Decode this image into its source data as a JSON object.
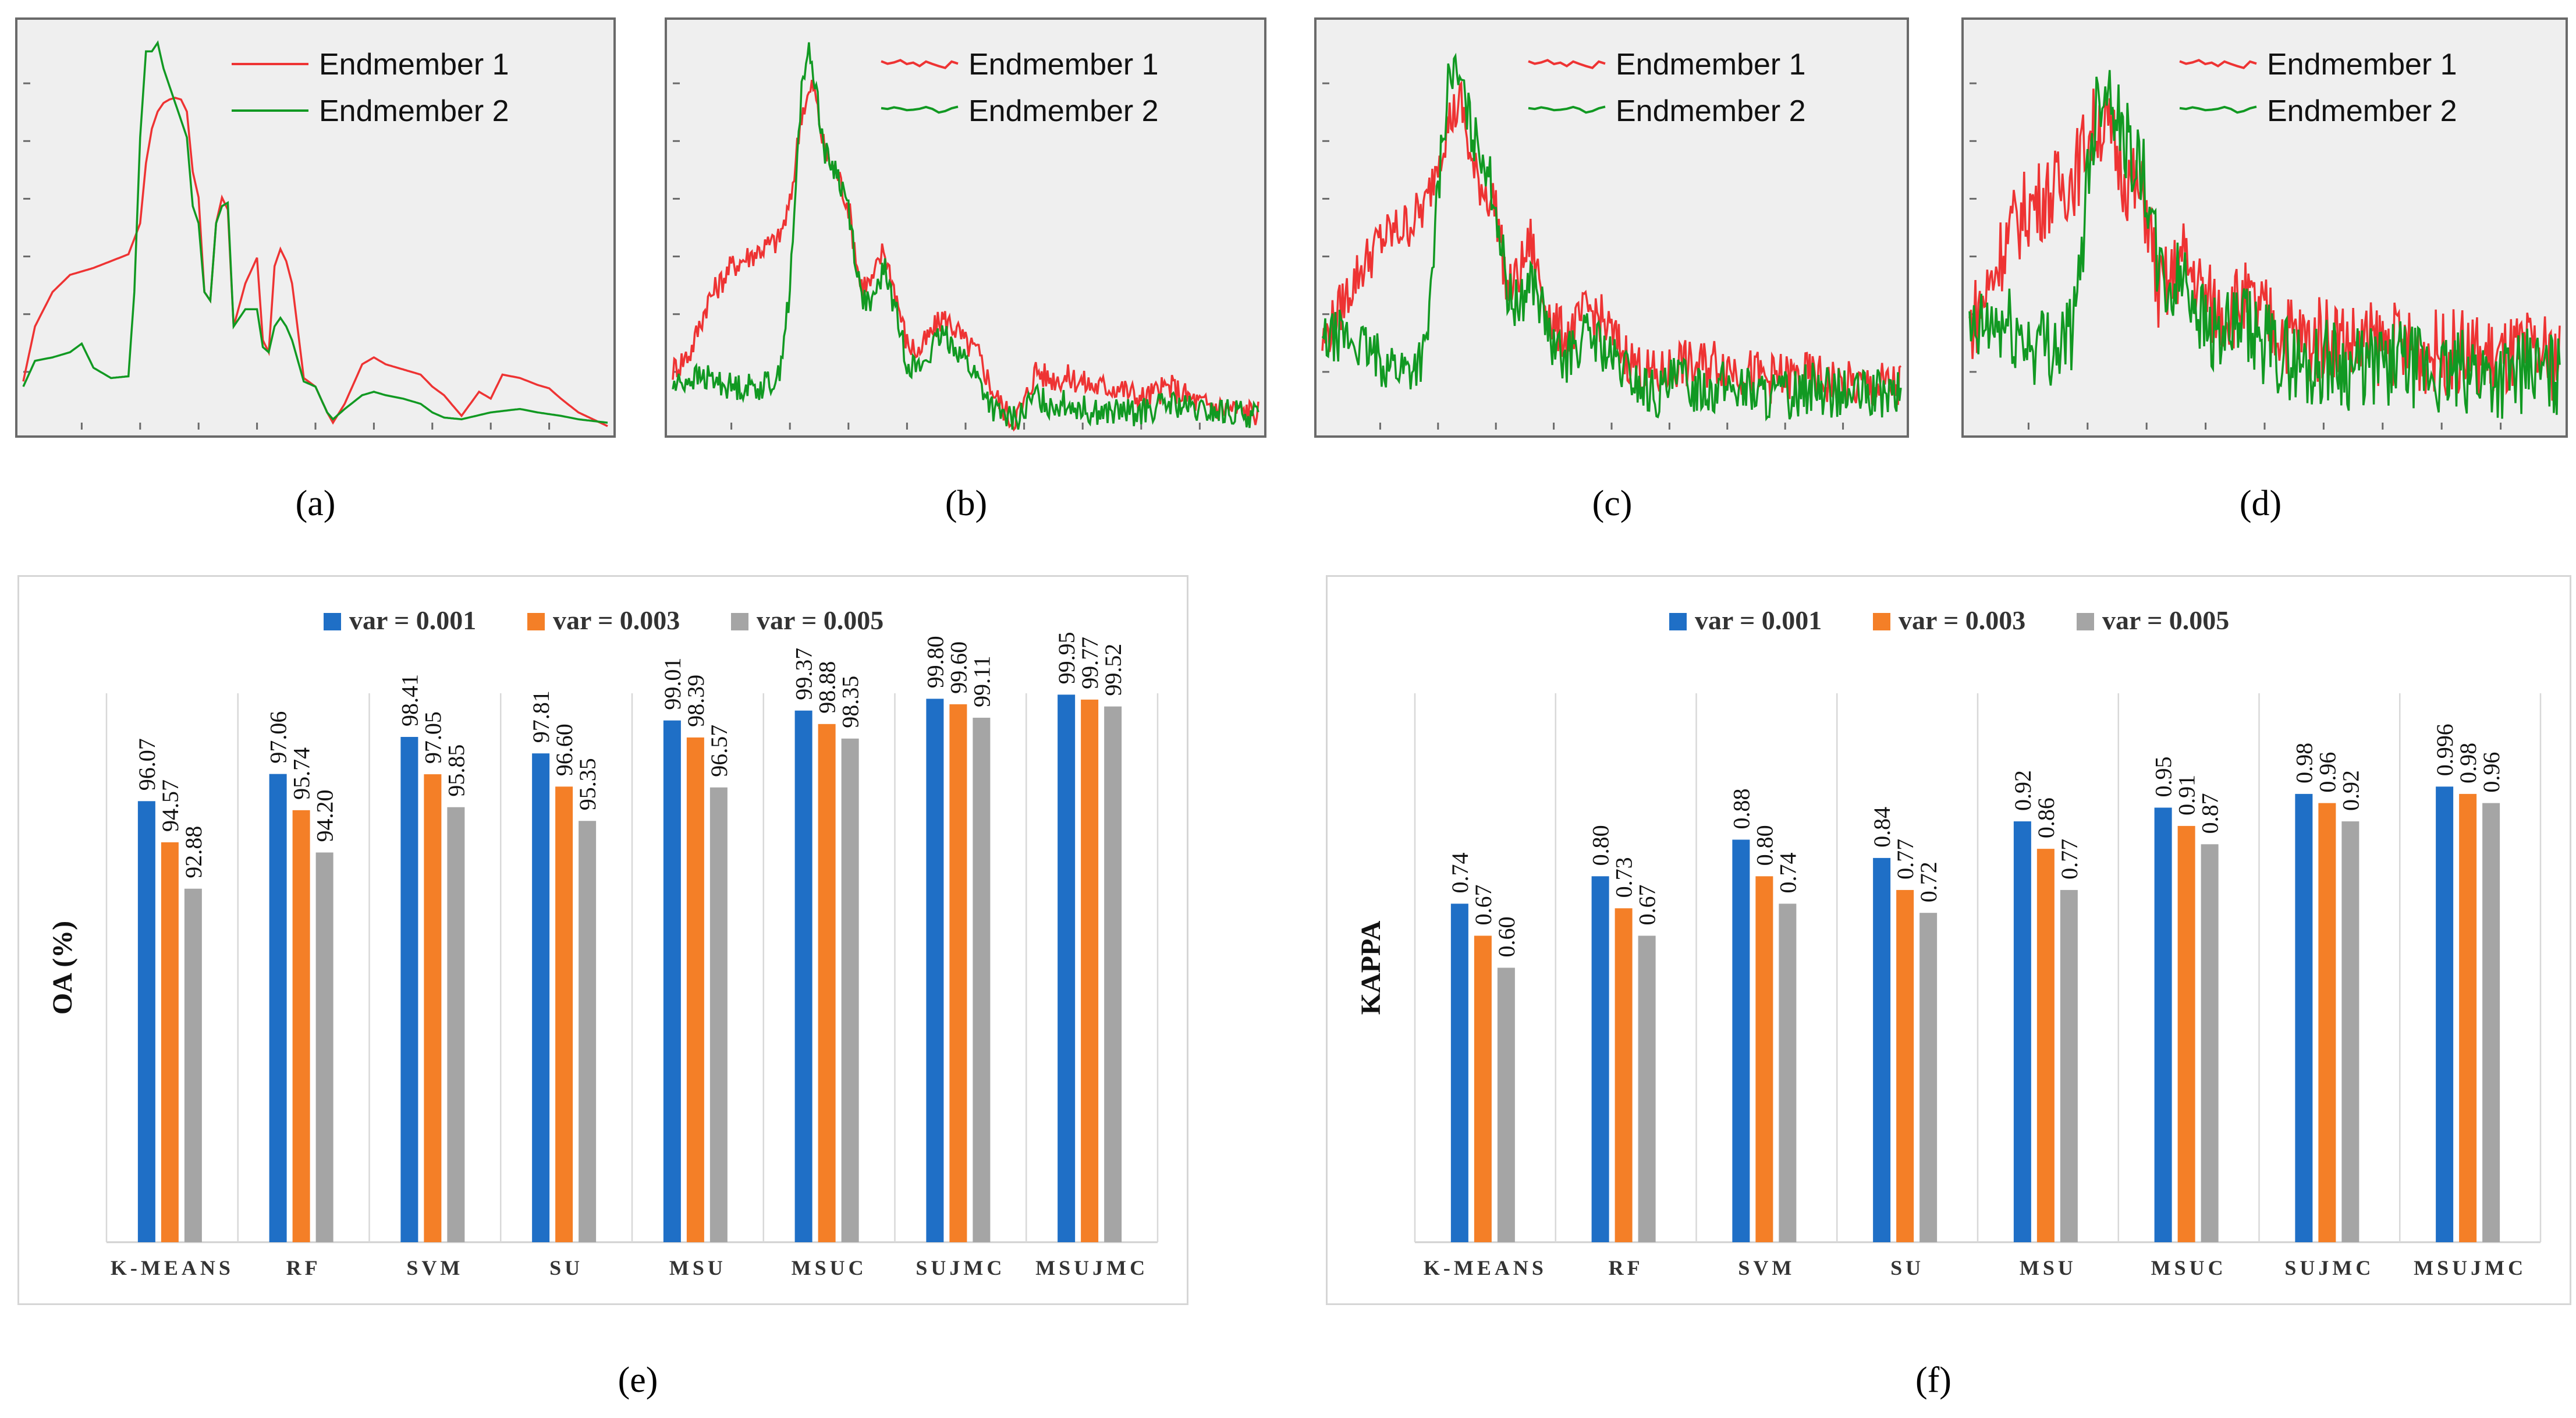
{
  "captions": [
    "(a)",
    "(b)",
    "(c)",
    "(d)",
    "(e)",
    "(f)"
  ],
  "colors": {
    "endmember_1": "#ee3333",
    "endmember_2": "#119922",
    "var_0_001": "#1f6fc6",
    "var_0_003": "#f47f27",
    "var_0_005": "#a5a5a5"
  },
  "chart_data": [
    {
      "id": "a",
      "type": "line",
      "legend": [
        "Endmember  1",
        "Endmember  2"
      ],
      "noise_level": 0.0,
      "series": [
        {
          "name": "Endmember  1",
          "x": [
            0,
            2,
            5,
            8,
            12,
            15,
            18,
            20,
            21,
            22,
            23,
            24,
            25,
            26,
            27,
            28,
            29,
            30,
            31,
            32,
            33,
            34,
            35,
            36,
            38,
            40,
            41,
            42,
            43,
            44,
            45,
            46,
            48,
            50,
            52,
            53,
            55,
            58,
            60,
            62,
            65,
            68,
            70,
            72,
            75,
            78,
            80,
            82,
            85,
            88,
            90,
            92,
            95,
            100
          ],
          "y": [
            0.28,
            0.6,
            0.8,
            0.9,
            0.94,
            0.98,
            1.02,
            1.2,
            1.55,
            1.75,
            1.85,
            1.9,
            1.92,
            1.93,
            1.92,
            1.85,
            1.5,
            1.35,
            0.8,
            0.75,
            1.2,
            1.35,
            1.28,
            0.6,
            0.85,
            1.0,
            0.52,
            0.45,
            0.95,
            1.05,
            0.98,
            0.85,
            0.3,
            0.25,
            0.1,
            0.04,
            0.15,
            0.38,
            0.42,
            0.38,
            0.35,
            0.32,
            0.25,
            0.2,
            0.08,
            0.22,
            0.18,
            0.32,
            0.3,
            0.26,
            0.24,
            0.18,
            0.1,
            0.02
          ]
        },
        {
          "name": "Endmember  2",
          "x": [
            0,
            2,
            5,
            8,
            10,
            12,
            15,
            18,
            19,
            20,
            21,
            22,
            23,
            24,
            25,
            26,
            27,
            28,
            29,
            30,
            31,
            32,
            33,
            34,
            35,
            36,
            38,
            40,
            41,
            42,
            43,
            44,
            45,
            46,
            48,
            50,
            52,
            53,
            55,
            58,
            60,
            62,
            65,
            68,
            70,
            72,
            75,
            80,
            85,
            88,
            92,
            95,
            100
          ],
          "y": [
            0.25,
            0.4,
            0.42,
            0.45,
            0.5,
            0.36,
            0.3,
            0.31,
            0.8,
            1.7,
            2.2,
            2.2,
            2.25,
            2.1,
            2.0,
            1.9,
            1.8,
            1.7,
            1.3,
            1.2,
            0.8,
            0.75,
            1.2,
            1.3,
            1.32,
            0.6,
            0.7,
            0.7,
            0.48,
            0.45,
            0.6,
            0.65,
            0.6,
            0.52,
            0.28,
            0.25,
            0.1,
            0.06,
            0.12,
            0.2,
            0.22,
            0.2,
            0.18,
            0.15,
            0.1,
            0.07,
            0.06,
            0.1,
            0.12,
            0.1,
            0.08,
            0.06,
            0.04
          ]
        }
      ]
    },
    {
      "id": "b",
      "type": "line",
      "legend": [
        "Endmember  1",
        "Endmember  2"
      ],
      "noise_level": 0.08,
      "series": [
        {
          "name": "Endmember  1",
          "x": [
            0,
            3,
            6,
            10,
            15,
            18,
            20,
            22,
            24,
            26,
            28,
            30,
            32,
            34,
            36,
            38,
            40,
            42,
            44,
            46,
            48,
            50,
            52,
            55,
            58,
            60,
            62,
            64,
            68,
            72,
            76,
            80,
            85,
            90,
            95,
            100
          ],
          "y": [
            0.35,
            0.45,
            0.75,
            0.95,
            1.05,
            1.1,
            1.3,
            1.85,
            2.0,
            1.6,
            1.5,
            1.3,
            0.85,
            0.85,
            1.05,
            0.8,
            0.5,
            0.45,
            0.55,
            0.65,
            0.6,
            0.5,
            0.45,
            0.2,
            0.05,
            0.15,
            0.35,
            0.3,
            0.3,
            0.25,
            0.25,
            0.18,
            0.25,
            0.15,
            0.12,
            0.1
          ]
        },
        {
          "name": "Endmember  2",
          "x": [
            0,
            3,
            6,
            10,
            15,
            18,
            20,
            22,
            23,
            24,
            26,
            28,
            30,
            32,
            34,
            36,
            38,
            40,
            42,
            44,
            46,
            48,
            50,
            52,
            55,
            58,
            60,
            62,
            64,
            68,
            72,
            76,
            80,
            85,
            90,
            95,
            100
          ],
          "y": [
            0.25,
            0.3,
            0.3,
            0.25,
            0.25,
            0.3,
            0.8,
            2.0,
            2.2,
            2.1,
            1.6,
            1.5,
            1.3,
            0.8,
            0.7,
            0.95,
            0.7,
            0.4,
            0.35,
            0.45,
            0.55,
            0.5,
            0.4,
            0.3,
            0.1,
            0.05,
            0.1,
            0.2,
            0.15,
            0.15,
            0.1,
            0.1,
            0.1,
            0.15,
            0.1,
            0.1,
            0.08
          ]
        }
      ]
    },
    {
      "id": "c",
      "type": "line",
      "legend": [
        "Endmember  1",
        "Endmember  2"
      ],
      "noise_level": 0.15,
      "series": [
        {
          "name": "Endmember  1",
          "x": [
            0,
            3,
            6,
            10,
            15,
            18,
            20,
            22,
            24,
            26,
            28,
            30,
            32,
            34,
            36,
            38,
            40,
            42,
            44,
            46,
            48,
            50,
            52,
            55,
            58,
            60,
            62,
            64,
            68,
            72,
            76,
            80,
            85,
            90,
            95,
            100
          ],
          "y": [
            0.5,
            0.7,
            0.9,
            1.1,
            1.2,
            1.3,
            1.6,
            1.8,
            1.9,
            1.5,
            1.4,
            1.3,
            0.8,
            0.9,
            1.1,
            0.8,
            0.6,
            0.55,
            0.6,
            0.7,
            0.65,
            0.55,
            0.45,
            0.35,
            0.3,
            0.35,
            0.4,
            0.35,
            0.4,
            0.35,
            0.3,
            0.3,
            0.3,
            0.25,
            0.25,
            0.25
          ]
        },
        {
          "name": "Endmember  2",
          "x": [
            0,
            3,
            6,
            10,
            15,
            18,
            20,
            22,
            24,
            26,
            28,
            30,
            32,
            34,
            36,
            38,
            40,
            42,
            44,
            46,
            48,
            50,
            52,
            55,
            58,
            60,
            62,
            64,
            68,
            72,
            76,
            80,
            85,
            90,
            95,
            100
          ],
          "y": [
            0.5,
            0.55,
            0.5,
            0.4,
            0.35,
            0.45,
            1.4,
            2.1,
            2.0,
            1.7,
            1.6,
            1.3,
            0.8,
            0.7,
            0.9,
            0.7,
            0.45,
            0.4,
            0.5,
            0.55,
            0.5,
            0.4,
            0.35,
            0.25,
            0.2,
            0.25,
            0.3,
            0.25,
            0.25,
            0.25,
            0.2,
            0.2,
            0.25,
            0.2,
            0.2,
            0.2
          ]
        }
      ]
    },
    {
      "id": "d",
      "type": "line",
      "legend": [
        "Endmember  1",
        "Endmember  2"
      ],
      "noise_level": 0.25,
      "series": [
        {
          "name": "Endmember  1",
          "x": [
            0,
            3,
            6,
            10,
            15,
            18,
            20,
            22,
            24,
            26,
            28,
            30,
            32,
            34,
            36,
            38,
            40,
            42,
            44,
            46,
            48,
            50,
            52,
            55,
            58,
            60,
            62,
            64,
            68,
            72,
            76,
            80,
            85,
            90,
            95,
            100
          ],
          "y": [
            0.6,
            0.8,
            1.1,
            1.3,
            1.4,
            1.5,
            1.7,
            1.8,
            1.7,
            1.5,
            1.4,
            1.3,
            0.8,
            0.85,
            1.0,
            0.9,
            0.75,
            0.7,
            0.7,
            0.75,
            0.7,
            0.65,
            0.6,
            0.55,
            0.5,
            0.55,
            0.55,
            0.5,
            0.5,
            0.5,
            0.45,
            0.45,
            0.45,
            0.4,
            0.45,
            0.4
          ]
        },
        {
          "name": "Endmember  2",
          "x": [
            0,
            3,
            6,
            10,
            15,
            18,
            20,
            22,
            24,
            26,
            28,
            30,
            32,
            34,
            36,
            38,
            40,
            42,
            44,
            46,
            48,
            50,
            52,
            55,
            58,
            60,
            62,
            64,
            68,
            72,
            76,
            80,
            85,
            90,
            95,
            100
          ],
          "y": [
            0.5,
            0.6,
            0.6,
            0.5,
            0.5,
            0.6,
            1.5,
            2.0,
            2.0,
            1.7,
            1.6,
            1.4,
            0.9,
            0.8,
            0.9,
            0.8,
            0.6,
            0.55,
            0.55,
            0.6,
            0.55,
            0.5,
            0.45,
            0.4,
            0.35,
            0.4,
            0.4,
            0.35,
            0.35,
            0.4,
            0.35,
            0.3,
            0.35,
            0.3,
            0.35,
            0.3
          ]
        }
      ]
    },
    {
      "id": "e",
      "type": "bar",
      "ylabel": "OA (%)",
      "ylim": [
        80,
        100
      ],
      "categories": [
        "K-MEANS",
        "RF",
        "SVM",
        "SU",
        "MSU",
        "MSUC",
        "SUJMC",
        "MSUJMC"
      ],
      "series": [
        {
          "name": "var = 0.001",
          "values": [
            96.07,
            97.06,
            98.41,
            97.81,
            99.01,
            99.37,
            99.8,
            99.95
          ],
          "labels": [
            "96.07",
            "97.06",
            "98.41",
            "97.81",
            "99.01",
            "99.37",
            "99.80",
            "99.95"
          ]
        },
        {
          "name": "var = 0.003",
          "values": [
            94.57,
            95.74,
            97.05,
            96.6,
            98.39,
            98.88,
            99.6,
            99.77
          ],
          "labels": [
            "94.57",
            "95.74",
            "97.05",
            "96.60",
            "98.39",
            "98.88",
            "99.60",
            "99.77"
          ]
        },
        {
          "name": "var = 0.005",
          "values": [
            92.88,
            94.2,
            95.85,
            95.35,
            96.57,
            98.35,
            99.11,
            99.52
          ],
          "labels": [
            "92.88",
            "94.20",
            "95.85",
            "95.35",
            "96.57",
            "98.35",
            "99.11",
            "99.52"
          ]
        }
      ]
    },
    {
      "id": "f",
      "type": "bar",
      "ylabel": "KAPPA",
      "ylim": [
        0,
        1.2
      ],
      "categories": [
        "K-MEANS",
        "RF",
        "SVM",
        "SU",
        "MSU",
        "MSUC",
        "SUJMC",
        "MSUJMC"
      ],
      "series": [
        {
          "name": "var = 0.001",
          "values": [
            0.74,
            0.8,
            0.88,
            0.84,
            0.92,
            0.95,
            0.98,
            0.996
          ],
          "labels": [
            "0.74",
            "0.80",
            "0.88",
            "0.84",
            "0.92",
            "0.95",
            "0.98",
            "0.996"
          ]
        },
        {
          "name": "var = 0.003",
          "values": [
            0.67,
            0.73,
            0.8,
            0.77,
            0.86,
            0.91,
            0.96,
            0.98
          ],
          "labels": [
            "0.67",
            "0.73",
            "0.80",
            "0.77",
            "0.86",
            "0.91",
            "0.96",
            "0.98"
          ]
        },
        {
          "name": "var = 0.005",
          "values": [
            0.6,
            0.67,
            0.74,
            0.72,
            0.77,
            0.87,
            0.92,
            0.96
          ],
          "labels": [
            "0.60",
            "0.67",
            "0.74",
            "0.72",
            "0.77",
            "0.87",
            "0.92",
            "0.96"
          ]
        }
      ]
    }
  ]
}
